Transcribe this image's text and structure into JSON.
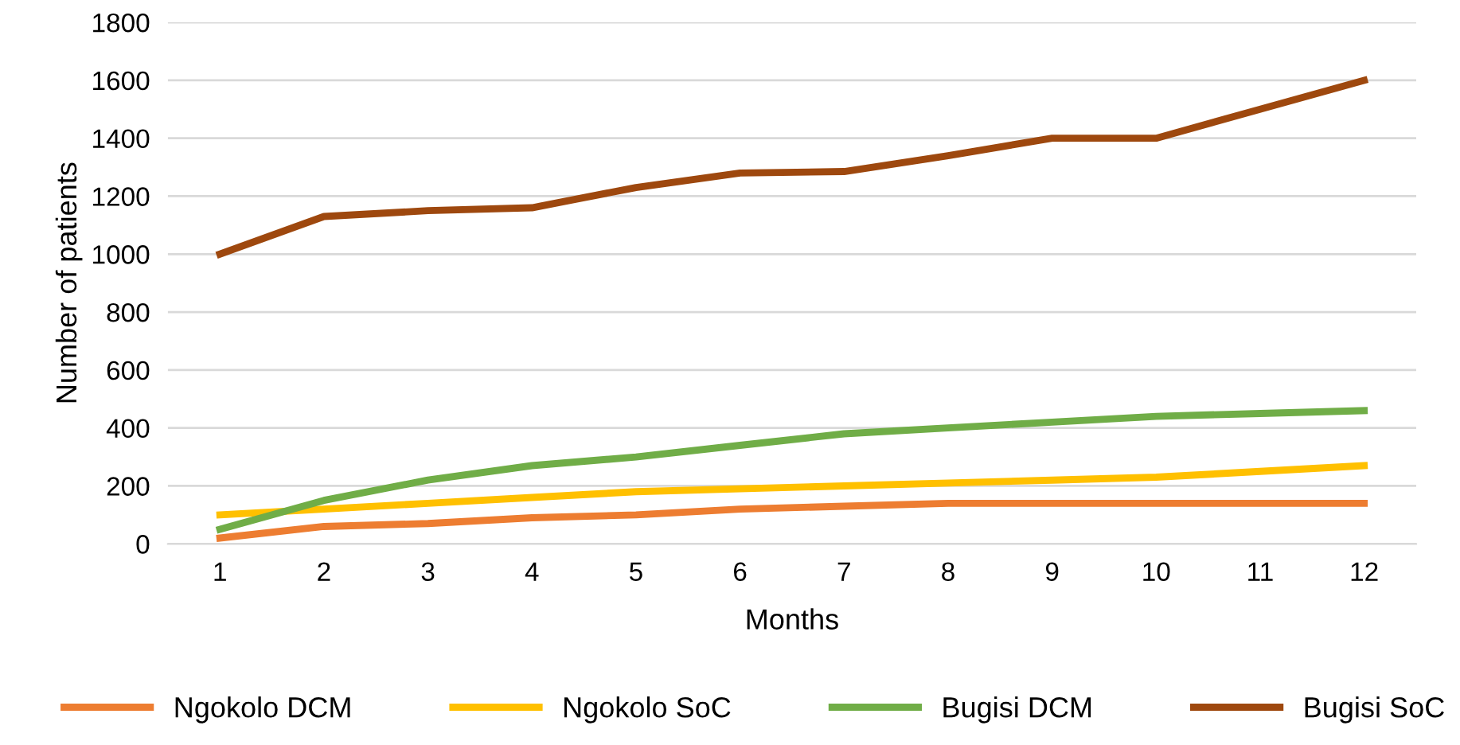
{
  "chart_data": {
    "type": "line",
    "xlabel": "Months",
    "ylabel": "Number of patients",
    "categories": [
      "1",
      "2",
      "3",
      "4",
      "5",
      "6",
      "7",
      "8",
      "9",
      "10",
      "11",
      "12"
    ],
    "series": [
      {
        "name": "Ngokolo DCM",
        "color": "#ed7d31",
        "values": [
          20,
          60,
          70,
          90,
          100,
          120,
          130,
          140,
          140,
          140,
          140,
          140
        ]
      },
      {
        "name": "Ngokolo SoC",
        "color": "#ffc000",
        "values": [
          100,
          120,
          140,
          160,
          180,
          190,
          200,
          210,
          220,
          230,
          250,
          270
        ]
      },
      {
        "name": "Bugisi DCM",
        "color": "#70ad47",
        "values": [
          50,
          150,
          220,
          270,
          300,
          340,
          380,
          400,
          420,
          440,
          450,
          460
        ]
      },
      {
        "name": "Bugisi SoC",
        "color": "#9e480e",
        "values": [
          1000,
          1130,
          1150,
          1160,
          1230,
          1280,
          1285,
          1340,
          1400,
          1400,
          1500,
          1600
        ]
      }
    ],
    "ylim": [
      0,
      1800
    ],
    "yticks": [
      0,
      200,
      400,
      600,
      800,
      1000,
      1200,
      1400,
      1600,
      1800
    ],
    "grid": "y",
    "legend": "bottom",
    "marker": "none",
    "line_style": "solid"
  }
}
